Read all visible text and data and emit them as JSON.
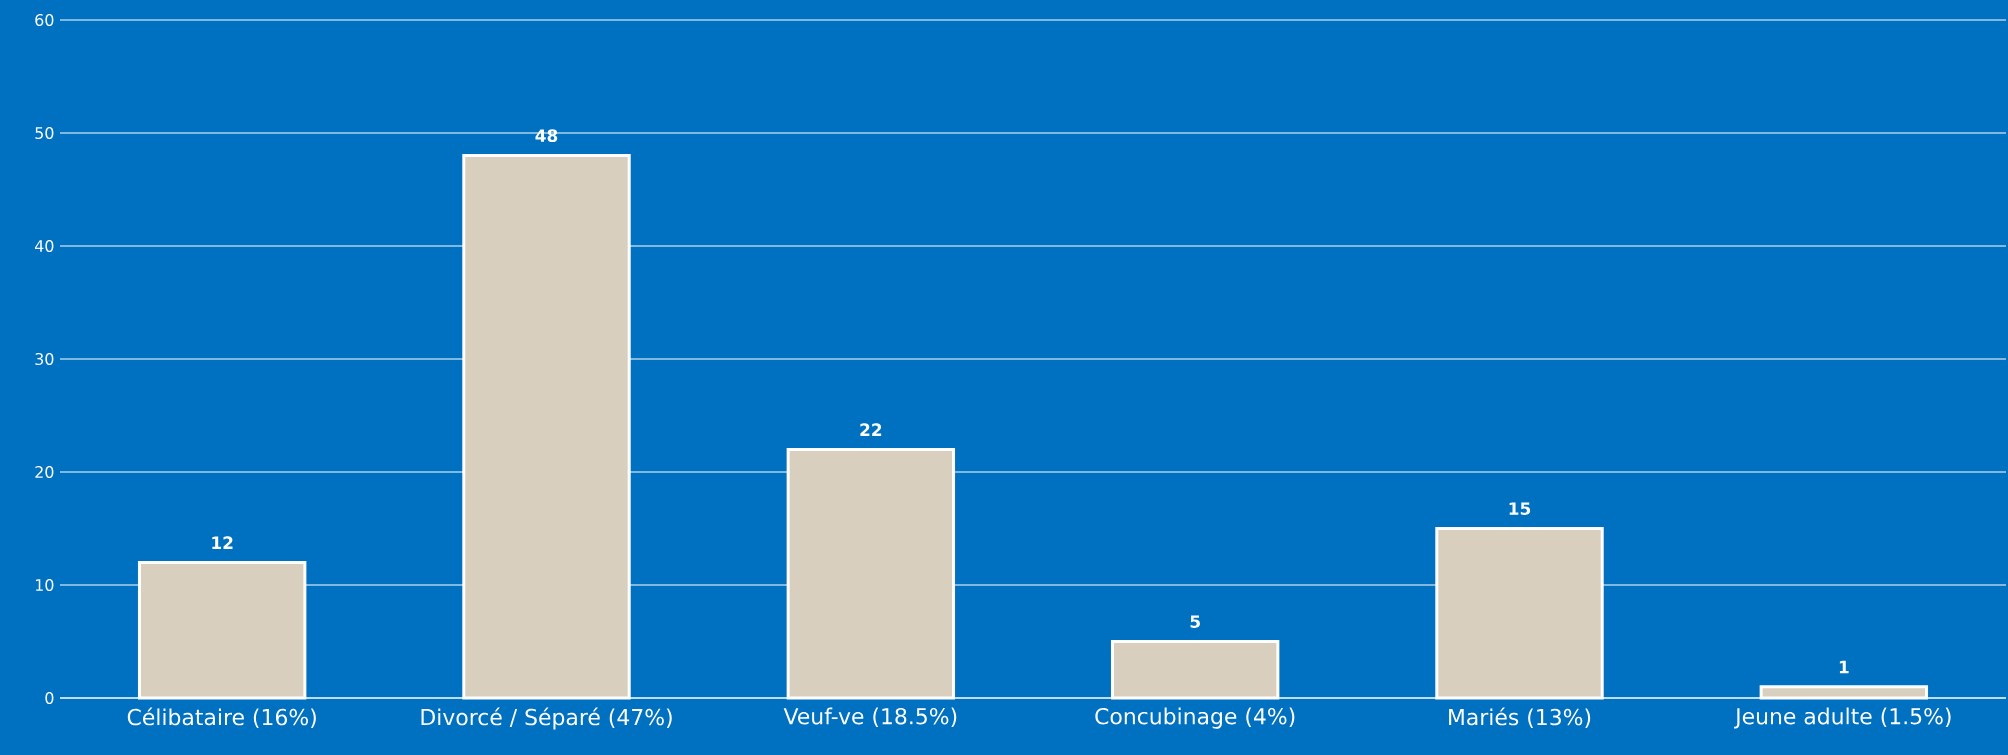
{
  "chart_data": {
    "type": "bar",
    "categories": [
      "Célibataire (16%)",
      "Divorcé / Séparé (47%)",
      "Veuf-ve (18.5%)",
      "Concubinage (4%)",
      "Mariés (13%)",
      "Jeune adulte (1.5%)"
    ],
    "values": [
      12,
      48,
      22,
      5,
      15,
      1
    ],
    "color": "#d8cfbf",
    "ylim": [
      0,
      60
    ],
    "yticks": [
      0,
      10,
      20,
      30,
      40,
      50,
      60
    ],
    "grid": "y",
    "data_labels": true
  }
}
